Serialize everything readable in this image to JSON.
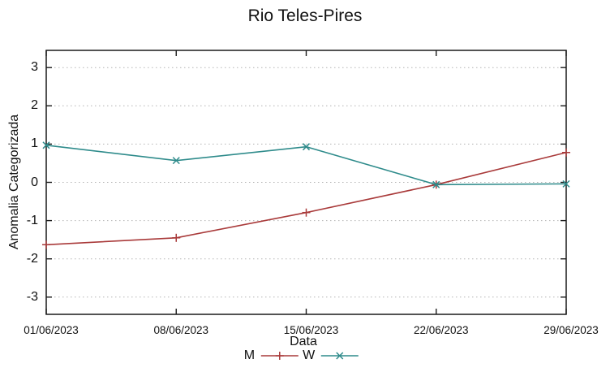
{
  "chart_data": {
    "type": "line",
    "title": "Rio Teles-Pires",
    "xlabel": "Data",
    "ylabel": "Anomalia Categorizada",
    "x": [
      "01/06/2023",
      "08/06/2023",
      "15/06/2023",
      "22/06/2023",
      "29/06/2023"
    ],
    "yticks": [
      -3,
      -2,
      -1,
      0,
      1,
      2,
      3
    ],
    "ylim": [
      -3.45,
      3.45
    ],
    "grid": "horizontal-dotted",
    "legend_position": "bottom-center",
    "series": [
      {
        "name": "M",
        "color": "#a93a3a",
        "marker": "plus",
        "values": [
          -1.63,
          -1.45,
          -0.79,
          -0.06,
          0.78
        ]
      },
      {
        "name": "W",
        "color": "#2e8b8b",
        "marker": "cross",
        "values": [
          0.97,
          0.57,
          0.93,
          -0.06,
          -0.04
        ]
      }
    ],
    "style": {
      "border_color": "#1a1a1a",
      "grid_color": "#b3b3b3",
      "text_color": "#111111",
      "background": "#ffffff"
    }
  }
}
